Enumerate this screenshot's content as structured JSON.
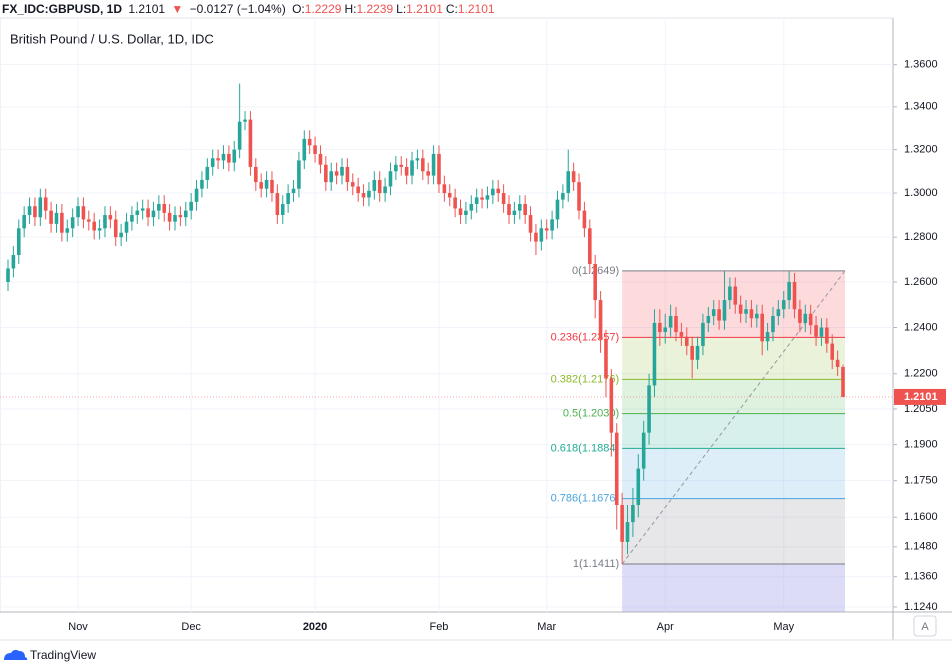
{
  "header": {
    "symbol": "FX_IDC:GBPUSD, 1D",
    "last": "1.2101",
    "arrow": "▼",
    "change": "−0.0127 (−1.04%)",
    "ohlc": [
      {
        "label": "O:",
        "value": "1.2229"
      },
      {
        "label": "H:",
        "value": "1.2239"
      },
      {
        "label": "L:",
        "value": "1.2101"
      },
      {
        "label": "C:",
        "value": "1.2101"
      }
    ]
  },
  "footer": {
    "brand": "TradingView",
    "auto_button": "A"
  },
  "chart_data": {
    "type": "candlestick",
    "title": "British Pound / U.S. Dollar, 1D, IDC",
    "categories": [
      null,
      null,
      null,
      null,
      null,
      null,
      null,
      null,
      null,
      null,
      null,
      null,
      null,
      "Nov",
      null,
      null,
      null,
      null,
      null,
      null,
      null,
      null,
      null,
      null,
      null,
      null,
      null,
      null,
      null,
      null,
      null,
      null,
      null,
      null,
      "Dec",
      null,
      null,
      null,
      null,
      null,
      null,
      null,
      null,
      null,
      null,
      null,
      null,
      null,
      null,
      null,
      null,
      null,
      null,
      null,
      null,
      null,
      null,
      "2020",
      null,
      null,
      null,
      null,
      null,
      null,
      null,
      null,
      null,
      null,
      null,
      null,
      null,
      null,
      null,
      null,
      null,
      null,
      null,
      null,
      null,
      null,
      "Feb",
      null,
      null,
      null,
      null,
      null,
      null,
      null,
      null,
      null,
      null,
      null,
      null,
      null,
      null,
      null,
      null,
      null,
      null,
      null,
      "Mar",
      null,
      null,
      null,
      null,
      null,
      null,
      null,
      null,
      null,
      null,
      null,
      null,
      null,
      null,
      null,
      null,
      null,
      null,
      null,
      null,
      null,
      "Apr",
      null,
      null,
      null,
      null,
      null,
      null,
      null,
      null,
      null,
      null,
      null,
      null,
      null,
      null,
      null,
      null,
      null,
      null,
      null,
      null,
      null,
      "May",
      null,
      null,
      null,
      null,
      null,
      null,
      null,
      null,
      null,
      null,
      null
    ],
    "open": [
      1.26,
      1.266,
      1.272,
      1.284,
      1.29,
      1.294,
      1.289,
      1.298,
      1.292,
      1.286,
      1.291,
      1.282,
      1.284,
      1.289,
      1.294,
      1.288,
      1.287,
      1.283,
      1.284,
      1.29,
      1.288,
      1.28,
      1.282,
      1.287,
      1.29,
      1.292,
      1.293,
      1.289,
      1.292,
      1.295,
      1.291,
      1.287,
      1.29,
      1.289,
      1.292,
      1.296,
      1.302,
      1.306,
      1.312,
      1.316,
      1.315,
      1.318,
      1.314,
      1.32,
      1.333,
      1.334,
      1.312,
      1.305,
      1.302,
      1.306,
      1.3,
      1.29,
      1.295,
      1.3,
      1.302,
      1.315,
      1.325,
      1.322,
      1.318,
      1.313,
      1.305,
      1.31,
      1.308,
      1.312,
      1.305,
      1.303,
      1.3,
      1.298,
      1.301,
      1.306,
      1.3,
      1.303,
      1.31,
      1.313,
      1.312,
      1.308,
      1.315,
      1.316,
      1.31,
      1.308,
      1.318,
      1.304,
      1.3,
      1.298,
      1.293,
      1.29,
      1.292,
      1.295,
      1.298,
      1.297,
      1.299,
      1.302,
      1.3,
      1.295,
      1.29,
      1.292,
      1.295,
      1.29,
      1.282,
      1.278,
      1.284,
      1.283,
      1.288,
      1.297,
      1.3,
      1.31,
      1.305,
      1.292,
      1.284,
      1.268,
      1.252,
      1.235,
      1.218,
      1.195,
      1.165,
      1.15,
      1.158,
      1.165,
      1.18,
      1.195,
      1.215,
      1.242,
      1.238,
      1.24,
      1.245,
      1.238,
      1.236,
      1.232,
      1.226,
      1.232,
      1.242,
      1.245,
      1.248,
      1.243,
      1.252,
      1.258,
      1.25,
      1.246,
      1.248,
      1.244,
      1.246,
      1.234,
      1.238,
      1.245,
      1.248,
      1.252,
      1.26,
      1.248,
      1.242,
      1.246,
      1.241,
      1.236,
      1.24,
      1.233,
      1.226,
      1.2229
    ],
    "high": [
      1.27,
      1.276,
      1.288,
      1.294,
      1.298,
      1.298,
      1.302,
      1.302,
      1.296,
      1.295,
      1.295,
      1.288,
      1.293,
      1.298,
      1.298,
      1.292,
      1.291,
      1.288,
      1.294,
      1.294,
      1.292,
      1.286,
      1.291,
      1.294,
      1.296,
      1.297,
      1.297,
      1.296,
      1.299,
      1.299,
      1.295,
      1.294,
      1.294,
      1.296,
      1.3,
      1.306,
      1.31,
      1.316,
      1.32,
      1.32,
      1.322,
      1.322,
      1.324,
      1.351,
      1.338,
      1.338,
      1.316,
      1.309,
      1.31,
      1.31,
      1.304,
      1.299,
      1.304,
      1.306,
      1.319,
      1.329,
      1.329,
      1.326,
      1.322,
      1.317,
      1.314,
      1.314,
      1.316,
      1.316,
      1.309,
      1.307,
      1.304,
      1.305,
      1.31,
      1.31,
      1.307,
      1.314,
      1.317,
      1.317,
      1.316,
      1.319,
      1.32,
      1.32,
      1.314,
      1.322,
      1.322,
      1.308,
      1.304,
      1.302,
      1.297,
      1.296,
      1.299,
      1.302,
      1.302,
      1.303,
      1.306,
      1.306,
      1.304,
      1.299,
      1.296,
      1.299,
      1.299,
      1.294,
      1.286,
      1.288,
      1.288,
      1.292,
      1.301,
      1.304,
      1.32,
      1.314,
      1.309,
      1.296,
      1.288,
      1.272,
      1.256,
      1.239,
      1.222,
      1.199,
      1.17,
      1.165,
      1.172,
      1.186,
      1.2,
      1.22,
      1.248,
      1.248,
      1.246,
      1.25,
      1.249,
      1.242,
      1.24,
      1.236,
      1.236,
      1.246,
      1.249,
      1.252,
      1.252,
      1.2649,
      1.262,
      1.262,
      1.254,
      1.252,
      1.252,
      1.25,
      1.25,
      1.242,
      1.249,
      1.252,
      1.256,
      1.2647,
      1.264,
      1.252,
      1.25,
      1.25,
      1.245,
      1.244,
      1.244,
      1.237,
      1.23,
      1.2239
    ],
    "low": [
      1.256,
      1.262,
      1.268,
      1.28,
      1.286,
      1.285,
      1.285,
      1.288,
      1.282,
      1.282,
      1.278,
      1.278,
      1.28,
      1.285,
      1.284,
      1.283,
      1.279,
      1.279,
      1.28,
      1.284,
      1.276,
      1.276,
      1.278,
      1.283,
      1.286,
      1.288,
      1.285,
      1.285,
      1.288,
      1.287,
      1.283,
      1.283,
      1.285,
      1.285,
      1.288,
      1.292,
      1.298,
      1.302,
      1.308,
      1.311,
      1.311,
      1.31,
      1.31,
      1.316,
      1.329,
      1.308,
      1.301,
      1.298,
      1.298,
      1.296,
      1.286,
      1.286,
      1.291,
      1.296,
      1.298,
      1.311,
      1.318,
      1.314,
      1.309,
      1.301,
      1.301,
      1.304,
      1.304,
      1.301,
      1.299,
      1.296,
      1.294,
      1.294,
      1.297,
      1.296,
      1.296,
      1.299,
      1.306,
      1.308,
      1.304,
      1.304,
      1.311,
      1.306,
      1.304,
      1.304,
      1.3,
      1.296,
      1.294,
      1.289,
      1.286,
      1.286,
      1.288,
      1.291,
      1.293,
      1.293,
      1.295,
      1.296,
      1.291,
      1.286,
      1.286,
      1.288,
      1.286,
      1.278,
      1.272,
      1.274,
      1.279,
      1.279,
      1.284,
      1.293,
      1.296,
      1.301,
      1.288,
      1.28,
      1.264,
      1.244,
      1.229,
      1.21,
      1.185,
      1.155,
      1.1411,
      1.145,
      1.152,
      1.16,
      1.175,
      1.19,
      1.21,
      1.232,
      1.233,
      1.236,
      1.234,
      1.232,
      1.228,
      1.218,
      1.222,
      1.228,
      1.238,
      1.241,
      1.239,
      1.239,
      1.248,
      1.246,
      1.242,
      1.242,
      1.24,
      1.24,
      1.228,
      1.23,
      1.234,
      1.241,
      1.244,
      1.248,
      1.244,
      1.238,
      1.238,
      1.237,
      1.232,
      1.232,
      1.229,
      1.222,
      1.219,
      1.2101
    ],
    "close": [
      1.266,
      1.272,
      1.284,
      1.29,
      1.294,
      1.289,
      1.298,
      1.292,
      1.286,
      1.291,
      1.282,
      1.284,
      1.289,
      1.294,
      1.288,
      1.287,
      1.283,
      1.284,
      1.29,
      1.288,
      1.28,
      1.282,
      1.287,
      1.29,
      1.292,
      1.293,
      1.289,
      1.292,
      1.295,
      1.291,
      1.287,
      1.29,
      1.289,
      1.292,
      1.296,
      1.302,
      1.306,
      1.312,
      1.316,
      1.315,
      1.318,
      1.314,
      1.32,
      1.333,
      1.334,
      1.312,
      1.305,
      1.302,
      1.306,
      1.3,
      1.29,
      1.295,
      1.3,
      1.302,
      1.315,
      1.325,
      1.322,
      1.318,
      1.313,
      1.305,
      1.31,
      1.308,
      1.312,
      1.305,
      1.303,
      1.3,
      1.298,
      1.301,
      1.306,
      1.3,
      1.303,
      1.31,
      1.313,
      1.312,
      1.308,
      1.315,
      1.316,
      1.31,
      1.308,
      1.318,
      1.304,
      1.3,
      1.298,
      1.293,
      1.29,
      1.292,
      1.295,
      1.298,
      1.297,
      1.299,
      1.302,
      1.3,
      1.295,
      1.29,
      1.292,
      1.295,
      1.29,
      1.282,
      1.278,
      1.284,
      1.283,
      1.288,
      1.297,
      1.3,
      1.31,
      1.305,
      1.292,
      1.284,
      1.268,
      1.252,
      1.235,
      1.218,
      1.195,
      1.165,
      1.15,
      1.158,
      1.165,
      1.18,
      1.195,
      1.215,
      1.242,
      1.238,
      1.24,
      1.245,
      1.238,
      1.236,
      1.232,
      1.226,
      1.232,
      1.242,
      1.245,
      1.248,
      1.243,
      1.252,
      1.258,
      1.25,
      1.246,
      1.248,
      1.244,
      1.246,
      1.234,
      1.238,
      1.245,
      1.248,
      1.252,
      1.26,
      1.248,
      1.242,
      1.246,
      1.241,
      1.236,
      1.24,
      1.233,
      1.226,
      1.2229,
      1.2101
    ],
    "up_color": "#26a69a",
    "down_color": "#ef5350",
    "log_scale": true,
    "grid": true,
    "ylim": [
      1.122,
      1.3825
    ],
    "yticks": [
      {
        "value": 1.36,
        "label": "1.3600"
      },
      {
        "value": 1.34,
        "label": "1.3400"
      },
      {
        "value": 1.32,
        "label": "1.3200"
      },
      {
        "value": 1.3,
        "label": "1.3000"
      },
      {
        "value": 1.28,
        "label": "1.2800"
      },
      {
        "value": 1.26,
        "label": "1.2600"
      },
      {
        "value": 1.24,
        "label": "1.2400"
      },
      {
        "value": 1.22,
        "label": "1.2200"
      },
      {
        "value": 1.205,
        "label": "1.2050"
      },
      {
        "value": 1.19,
        "label": "1.1900"
      },
      {
        "value": 1.175,
        "label": "1.1750"
      },
      {
        "value": 1.16,
        "label": "1.1600"
      },
      {
        "value": 1.148,
        "label": "1.1480"
      },
      {
        "value": 1.136,
        "label": "1.1360"
      },
      {
        "value": 1.124,
        "label": "1.1240"
      }
    ],
    "last_price": 1.2101,
    "last_price_color": "#ef5350",
    "fib": {
      "extension_color": "#9c9ce8",
      "levels": [
        {
          "value": 1.2649,
          "label": "0(1.2649)",
          "color": "#787b86"
        },
        {
          "value": 1.2357,
          "label": "0.236(1.2357)",
          "color": "#f23645"
        },
        {
          "value": 1.2176,
          "label": "0.382(1.2176)",
          "color": "#8bb82a"
        },
        {
          "value": 1.203,
          "label": "0.5(1.2030)",
          "color": "#4caf50"
        },
        {
          "value": 1.1884,
          "label": "0.618(1.1884)",
          "color": "#22ab94"
        },
        {
          "value": 1.1676,
          "label": "0.786(1.1676)",
          "color": "#4aa3df"
        },
        {
          "value": 1.1411,
          "label": "1(1.1411)",
          "color": "#787b86"
        }
      ]
    }
  }
}
